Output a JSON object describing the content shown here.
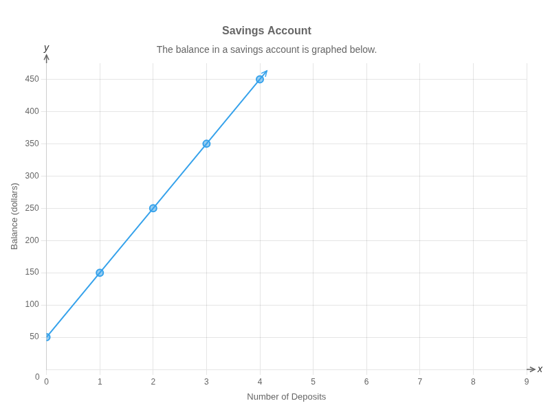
{
  "chart_data": {
    "type": "line",
    "title": "Savings Account",
    "subtitle": "The balance in a savings account is graphed below.",
    "xlabel": "Number of Deposits",
    "ylabel": "Balance (dollars)",
    "x": [
      0,
      1,
      2,
      3,
      4
    ],
    "values": [
      50,
      150,
      250,
      350,
      450
    ],
    "marker": "circle",
    "xlim": [
      0,
      9
    ],
    "ylim": [
      0,
      475
    ],
    "xticks": [
      0,
      1,
      2,
      3,
      4,
      5,
      6,
      7,
      8,
      9
    ],
    "yticks": [
      50,
      100,
      150,
      200,
      250,
      300,
      350,
      400,
      450
    ],
    "grid": true,
    "annotations": [
      "y",
      "x",
      "0"
    ]
  }
}
